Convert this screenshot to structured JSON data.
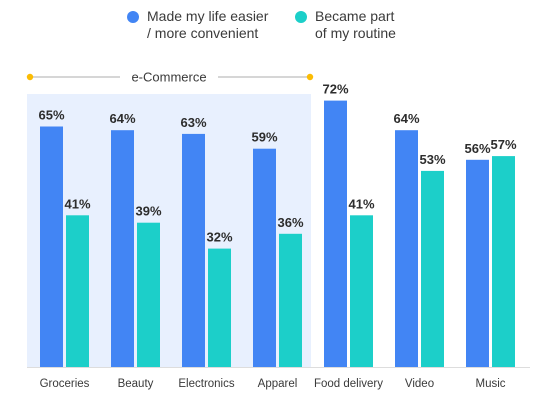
{
  "chart_data": {
    "type": "bar",
    "categories": [
      "Groceries",
      "Beauty",
      "Electronics",
      "Apparel",
      "Food delivery",
      "Video",
      "Music"
    ],
    "series": [
      {
        "name": "Made my life easier\n/ more convenient",
        "values": [
          65,
          64,
          63,
          59,
          72,
          64,
          56
        ],
        "color": "#4285f4"
      },
      {
        "name": "Became part\nof my routine",
        "values": [
          41,
          39,
          32,
          36,
          41,
          53,
          57
        ],
        "color": "#1ccfc9"
      }
    ],
    "value_suffix": "%",
    "ylim": [
      0,
      100
    ],
    "grid": false,
    "legend_position": "top",
    "group": {
      "label": "e-Commerce",
      "categories": [
        "Groceries",
        "Beauty",
        "Electronics",
        "Apparel"
      ],
      "shade": "#e8f0fe",
      "accent": "#fbbc04"
    }
  }
}
